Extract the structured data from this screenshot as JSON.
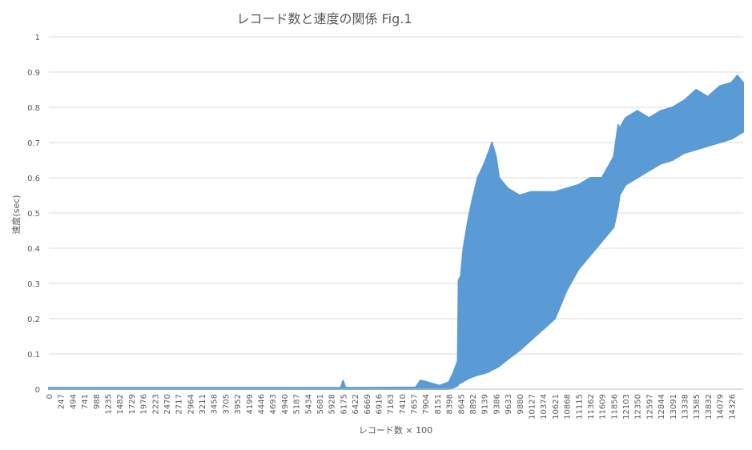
{
  "chart_data": {
    "type": "line",
    "title": "レコード数と速度の関係 Fig.1",
    "xlabel": "レコード数 × 100",
    "ylabel": "速度(sec)",
    "ylim": [
      0,
      1
    ],
    "yticks": [
      "0",
      "0.1",
      "0.2",
      "0.3",
      "0.4",
      "0.5",
      "0.6",
      "0.7",
      "0.8",
      "0.9",
      "1"
    ],
    "xlim": [
      0,
      14573
    ],
    "xticks": [
      0,
      247,
      494,
      741,
      988,
      1235,
      1482,
      1729,
      1976,
      2223,
      2470,
      2717,
      2964,
      3211,
      3458,
      3705,
      3952,
      4199,
      4446,
      4693,
      4940,
      5187,
      5434,
      5681,
      5928,
      6175,
      6422,
      6669,
      6916,
      7163,
      7410,
      7657,
      7904,
      8151,
      8398,
      8645,
      8892,
      9139,
      9386,
      9633,
      9880,
      10127,
      10374,
      10621,
      10868,
      11115,
      11362,
      11609,
      11856,
      12103,
      12350,
      12597,
      12844,
      13091,
      13338,
      13585,
      13832,
      14079,
      14326
    ],
    "grid": true,
    "legend": "none",
    "series": [
      {
        "color": "#5b9bd5",
        "envelope": {
          "x": [
            0,
            6000,
            6125,
            6175,
            6225,
            7700,
            7800,
            8200,
            8398,
            8500,
            8580,
            8600,
            8645,
            8700,
            8800,
            8892,
            9000,
            9139,
            9250,
            9300,
            9386,
            9450,
            9633,
            9880,
            10127,
            10374,
            10621,
            10868,
            11115,
            11362,
            11609,
            11856,
            11950,
            11980,
            12103,
            12350,
            12597,
            12844,
            13091,
            13338,
            13585,
            13832,
            14079,
            14326,
            14450,
            14573
          ],
          "lower": [
            0,
            0,
            0,
            0,
            0,
            0,
            0,
            0,
            0,
            0.005,
            0.01,
            0.015,
            0.018,
            0.022,
            0.03,
            0.035,
            0.04,
            0.045,
            0.05,
            0.055,
            0.06,
            0.065,
            0.085,
            0.11,
            0.14,
            0.17,
            0.2,
            0.28,
            0.34,
            0.38,
            0.42,
            0.46,
            0.52,
            0.55,
            0.58,
            0.6,
            0.62,
            0.64,
            0.65,
            0.67,
            0.68,
            0.69,
            0.7,
            0.71,
            0.72,
            0.73
          ],
          "upper": [
            0.004,
            0.004,
            0.004,
            0.024,
            0.004,
            0.005,
            0.025,
            0.01,
            0.02,
            0.05,
            0.08,
            0.31,
            0.32,
            0.4,
            0.48,
            0.54,
            0.6,
            0.64,
            0.68,
            0.7,
            0.66,
            0.6,
            0.57,
            0.55,
            0.56,
            0.56,
            0.56,
            0.57,
            0.58,
            0.6,
            0.6,
            0.66,
            0.75,
            0.74,
            0.77,
            0.79,
            0.77,
            0.79,
            0.8,
            0.82,
            0.85,
            0.83,
            0.86,
            0.87,
            0.89,
            0.87
          ]
        }
      }
    ]
  }
}
